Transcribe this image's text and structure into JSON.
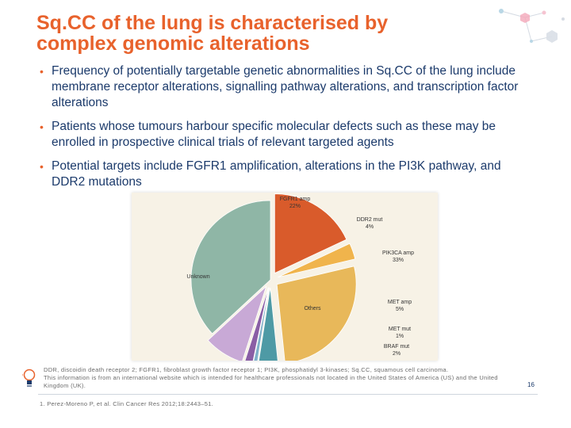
{
  "slide": {
    "title_line1": "Sq.CC of the lung is characterised by",
    "title_line2": "complex genomic alterations",
    "bullets": [
      "Frequency of potentially targetable genetic abnormalities in Sq.CC of the lung include membrane receptor alterations, signalling pathway alterations, and transcription factor alterations",
      "Patients whose tumours harbour specific molecular defects such as these may be enrolled in prospective clinical trials of relevant targeted agents",
      "Potential targets include FGFR1 amplification, alterations in the PI3K pathway, and DDR2 mutations"
    ],
    "bullet_symbol": "•",
    "footnote_line1": "DDR, discoidin death receptor 2; FGFR1, fibroblast growth factor receptor 1; PI3K, phosphatidyl 3-kinases; Sq.CC, squamous cell carcinoma.",
    "footnote_line2": "This information is from an international website which is intended for healthcare professionals not located in the United States of America (US) and the United Kingdom (UK).",
    "reference": "1. Perez-Moreno P, et al. Clin Cancer Res 2012;18:2443–51.",
    "page_number": "16"
  },
  "chart_data": {
    "type": "pie",
    "labels": [
      "FGFR1 amp",
      "DDR2 mut",
      "PIK3CA amp",
      "MET amp",
      "MET mut",
      "BRAF mut",
      "Others",
      "Unknown"
    ],
    "value_labels": [
      "22%",
      "4%",
      "33%",
      "5%",
      "1%",
      "2%",
      "",
      ""
    ],
    "values": [
      22,
      4,
      33,
      5,
      1,
      2,
      10,
      45
    ],
    "colors": [
      "#d95b2b",
      "#f0b44c",
      "#e8b85a",
      "#4e9aa5",
      "#7fb0c9",
      "#8a5ea5",
      "#c8a9d6",
      "#8fb6a6"
    ],
    "title": "",
    "xlabel": "",
    "ylabel": ""
  }
}
